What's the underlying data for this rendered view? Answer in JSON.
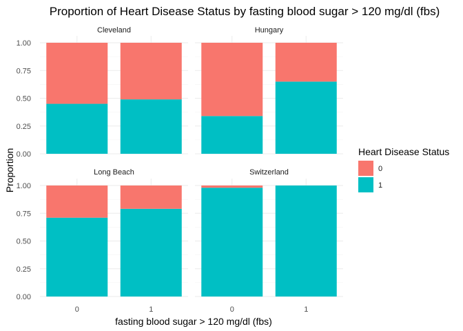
{
  "chart_data": {
    "type": "bar",
    "stacked": true,
    "title": "Proportion of Heart Disease Status by fasting blood sugar > 120 mg/dl (fbs)",
    "xlabel": "fasting blood sugar > 120 mg/dl (fbs)",
    "ylabel": "Proportion",
    "categories": [
      "0",
      "1"
    ],
    "ylim": [
      0,
      1
    ],
    "yticks": [
      "0.00",
      "0.25",
      "0.50",
      "0.75",
      "1.00"
    ],
    "legend": {
      "title": "Heart Disease Status",
      "position": "right",
      "entries": [
        {
          "label": "0",
          "color": "#F8766D"
        },
        {
          "label": "1",
          "color": "#00BFC4"
        }
      ]
    },
    "grid": true,
    "panels": [
      {
        "name": "Cleveland",
        "series": [
          {
            "name": "0",
            "values": [
              0.55,
              0.51
            ]
          },
          {
            "name": "1",
            "values": [
              0.45,
              0.49
            ]
          }
        ]
      },
      {
        "name": "Hungary",
        "series": [
          {
            "name": "0",
            "values": [
              0.66,
              0.35
            ]
          },
          {
            "name": "1",
            "values": [
              0.34,
              0.65
            ]
          }
        ]
      },
      {
        "name": "Long Beach",
        "series": [
          {
            "name": "0",
            "values": [
              0.29,
              0.21
            ]
          },
          {
            "name": "1",
            "values": [
              0.71,
              0.79
            ]
          }
        ]
      },
      {
        "name": "Switzerland",
        "series": [
          {
            "name": "0",
            "values": [
              0.02,
              0.0
            ]
          },
          {
            "name": "1",
            "values": [
              0.98,
              1.0
            ]
          }
        ]
      }
    ]
  }
}
